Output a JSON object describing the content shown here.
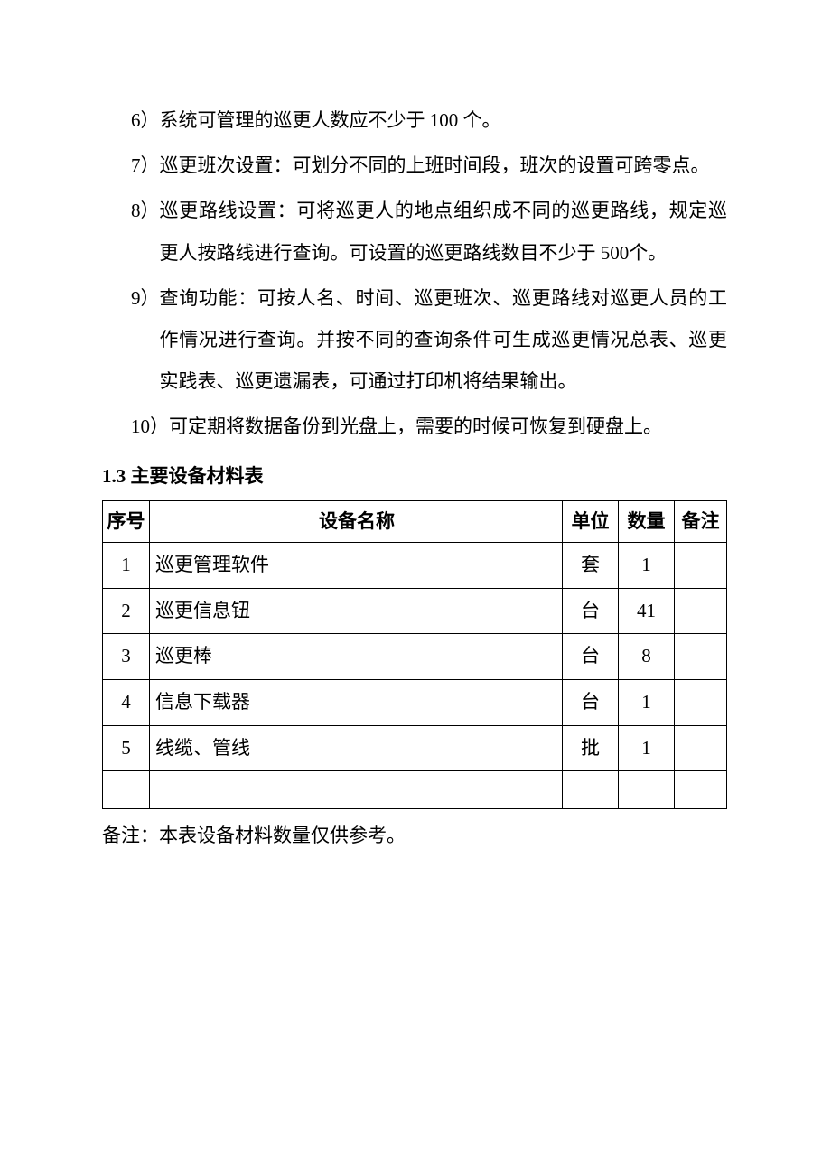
{
  "list": [
    {
      "marker": "6）",
      "text": "系统可管理的巡更人数应不少于 100 个。"
    },
    {
      "marker": "7）",
      "text": "巡更班次设置：可划分不同的上班时间段，班次的设置可跨零点。"
    },
    {
      "marker": "8）",
      "text": "巡更路线设置：可将巡更人的地点组织成不同的巡更路线，规定巡更人按路线进行查询。可设置的巡更路线数目不少于 500个。"
    },
    {
      "marker": "9）",
      "text": "查询功能：可按人名、时间、巡更班次、巡更路线对巡更人员的工作情况进行查询。并按不同的查询条件可生成巡更情况总表、巡更实践表、巡更遗漏表，可通过打印机将结果输出。"
    },
    {
      "marker": "10）",
      "text": "可定期将数据备份到光盘上，需要的时候可恢复到硬盘上。"
    }
  ],
  "section_heading": "1.3 主要设备材料表",
  "table": {
    "headers": {
      "seq": "序号",
      "name": "设备名称",
      "unit": "单位",
      "qty": "数量",
      "note": "备注"
    },
    "rows": [
      {
        "seq": "1",
        "name": "巡更管理软件",
        "unit": "套",
        "qty": "1",
        "note": ""
      },
      {
        "seq": "2",
        "name": "巡更信息钮",
        "unit": "台",
        "qty": "41",
        "note": ""
      },
      {
        "seq": "3",
        "name": "巡更棒",
        "unit": "台",
        "qty": "8",
        "note": ""
      },
      {
        "seq": "4",
        "name": "信息下载器",
        "unit": "台",
        "qty": "1",
        "note": ""
      },
      {
        "seq": "5",
        "name": "线缆、管线",
        "unit": "批",
        "qty": "1",
        "note": ""
      }
    ]
  },
  "footnote": "备注：本表设备材料数量仅供参考。"
}
